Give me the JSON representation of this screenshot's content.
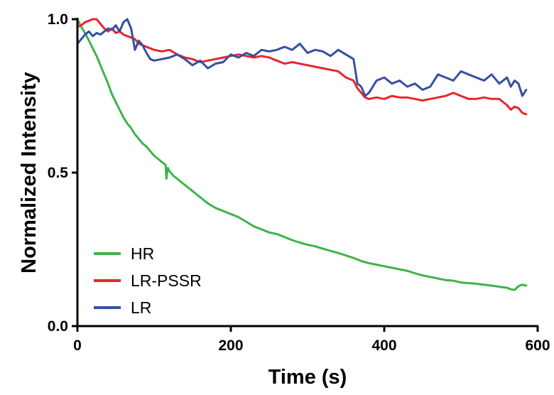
{
  "chart_data": {
    "type": "line",
    "title": "",
    "xlabel": "Time (s)",
    "ylabel": "Normalized Intensity",
    "xlim": [
      0,
      600
    ],
    "ylim": [
      0,
      1
    ],
    "x_ticks": [
      0,
      200,
      400,
      600
    ],
    "y_ticks": [
      0.0,
      0.5,
      1.0
    ],
    "x_tick_labels": [
      "0",
      "200",
      "400",
      "600"
    ],
    "y_tick_labels": [
      "0.0",
      "0.5",
      "1.0"
    ],
    "grid": false,
    "legend": "bottom-left",
    "series": [
      {
        "name": "HR",
        "color": "#3cb44b",
        "x": [
          0,
          5,
          10,
          15,
          20,
          25,
          30,
          35,
          40,
          45,
          50,
          55,
          60,
          65,
          70,
          75,
          80,
          85,
          90,
          95,
          100,
          105,
          110,
          115,
          116,
          117,
          118,
          120,
          125,
          130,
          135,
          140,
          145,
          150,
          160,
          170,
          180,
          190,
          200,
          210,
          220,
          230,
          240,
          250,
          260,
          270,
          280,
          290,
          300,
          310,
          320,
          330,
          340,
          350,
          360,
          370,
          380,
          390,
          400,
          410,
          420,
          430,
          440,
          450,
          460,
          470,
          480,
          490,
          500,
          510,
          520,
          530,
          540,
          550,
          560,
          565,
          570,
          575,
          580,
          585
        ],
        "y": [
          1.0,
          0.975,
          0.955,
          0.93,
          0.905,
          0.88,
          0.85,
          0.82,
          0.79,
          0.755,
          0.73,
          0.705,
          0.68,
          0.66,
          0.645,
          0.625,
          0.61,
          0.595,
          0.585,
          0.57,
          0.555,
          0.545,
          0.535,
          0.525,
          0.48,
          0.5,
          0.515,
          0.505,
          0.49,
          0.48,
          0.47,
          0.46,
          0.45,
          0.44,
          0.42,
          0.4,
          0.385,
          0.375,
          0.365,
          0.355,
          0.34,
          0.325,
          0.315,
          0.305,
          0.3,
          0.29,
          0.28,
          0.272,
          0.265,
          0.26,
          0.252,
          0.245,
          0.238,
          0.23,
          0.222,
          0.212,
          0.205,
          0.2,
          0.195,
          0.19,
          0.185,
          0.18,
          0.172,
          0.165,
          0.16,
          0.155,
          0.15,
          0.148,
          0.142,
          0.14,
          0.138,
          0.135,
          0.132,
          0.128,
          0.125,
          0.12,
          0.118,
          0.13,
          0.135,
          0.132
        ]
      },
      {
        "name": "LR-PSSR",
        "color": "#e8262b",
        "x": [
          0,
          5,
          10,
          15,
          20,
          25,
          30,
          35,
          40,
          45,
          50,
          55,
          60,
          65,
          70,
          75,
          80,
          90,
          100,
          110,
          120,
          130,
          140,
          150,
          160,
          170,
          180,
          190,
          200,
          210,
          220,
          230,
          240,
          250,
          260,
          270,
          280,
          290,
          300,
          310,
          320,
          330,
          340,
          350,
          360,
          365,
          370,
          375,
          380,
          390,
          400,
          410,
          420,
          430,
          440,
          450,
          460,
          470,
          480,
          490,
          500,
          510,
          520,
          530,
          540,
          550,
          560,
          565,
          570,
          575,
          580,
          585
        ],
        "y": [
          0.975,
          0.98,
          0.99,
          0.995,
          1.0,
          1.0,
          0.985,
          0.97,
          0.96,
          0.97,
          0.955,
          0.96,
          0.95,
          0.945,
          0.94,
          0.935,
          0.92,
          0.91,
          0.9,
          0.895,
          0.9,
          0.885,
          0.875,
          0.87,
          0.86,
          0.865,
          0.87,
          0.875,
          0.88,
          0.885,
          0.88,
          0.875,
          0.88,
          0.875,
          0.865,
          0.855,
          0.86,
          0.855,
          0.85,
          0.845,
          0.84,
          0.835,
          0.83,
          0.81,
          0.8,
          0.775,
          0.76,
          0.745,
          0.74,
          0.745,
          0.74,
          0.75,
          0.745,
          0.745,
          0.74,
          0.735,
          0.74,
          0.745,
          0.75,
          0.76,
          0.75,
          0.74,
          0.74,
          0.745,
          0.74,
          0.74,
          0.72,
          0.705,
          0.715,
          0.71,
          0.695,
          0.69
        ]
      },
      {
        "name": "LR",
        "color": "#3550a3",
        "x": [
          0,
          5,
          10,
          15,
          20,
          25,
          30,
          35,
          40,
          45,
          50,
          55,
          60,
          65,
          70,
          75,
          80,
          85,
          90,
          95,
          100,
          110,
          120,
          130,
          140,
          150,
          160,
          170,
          180,
          190,
          200,
          210,
          220,
          230,
          240,
          250,
          260,
          270,
          280,
          290,
          300,
          310,
          320,
          330,
          340,
          350,
          360,
          365,
          370,
          375,
          380,
          390,
          400,
          410,
          420,
          430,
          440,
          450,
          460,
          470,
          480,
          490,
          500,
          510,
          520,
          530,
          540,
          550,
          560,
          565,
          570,
          575,
          580,
          585
        ],
        "y": [
          0.92,
          0.935,
          0.95,
          0.96,
          0.945,
          0.955,
          0.95,
          0.96,
          0.97,
          0.965,
          0.98,
          0.96,
          0.99,
          1.0,
          0.97,
          0.9,
          0.93,
          0.915,
          0.89,
          0.87,
          0.865,
          0.87,
          0.875,
          0.885,
          0.87,
          0.85,
          0.865,
          0.84,
          0.855,
          0.86,
          0.885,
          0.875,
          0.89,
          0.88,
          0.9,
          0.895,
          0.9,
          0.91,
          0.9,
          0.92,
          0.89,
          0.9,
          0.895,
          0.88,
          0.9,
          0.885,
          0.87,
          0.79,
          0.78,
          0.75,
          0.76,
          0.8,
          0.81,
          0.79,
          0.8,
          0.78,
          0.79,
          0.77,
          0.78,
          0.82,
          0.81,
          0.8,
          0.83,
          0.82,
          0.81,
          0.8,
          0.82,
          0.79,
          0.81,
          0.78,
          0.8,
          0.79,
          0.75,
          0.77
        ]
      }
    ]
  }
}
